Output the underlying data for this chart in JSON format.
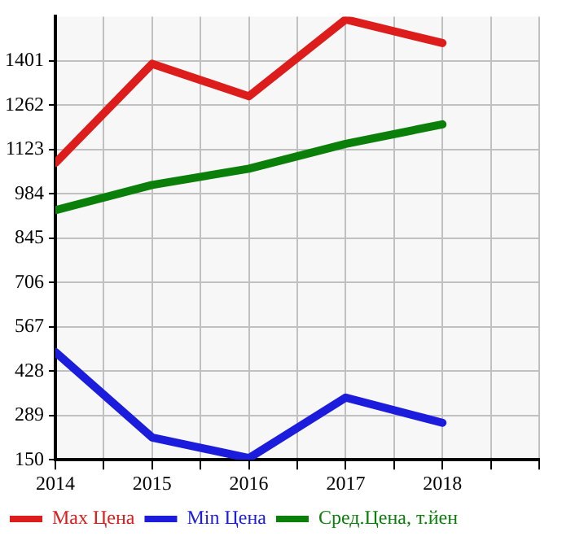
{
  "chart_data": {
    "type": "line",
    "x": [
      2014,
      2015,
      2016,
      2017,
      2018
    ],
    "series": [
      {
        "name": "Max Цена",
        "color": "#dd1c1c",
        "values": [
          1081,
          1392,
          1290,
          1531,
          1457
        ]
      },
      {
        "name": "Min Цена",
        "color": "#1c1cdd",
        "values": [
          488,
          220,
          155,
          345,
          266
        ]
      },
      {
        "name": "Сред.Цена, т.йен",
        "color": "#0a7f0a",
        "values": [
          933,
          1012,
          1063,
          1141,
          1202
        ]
      }
    ],
    "xlim": [
      2014,
      2019
    ],
    "xticks": [
      2014,
      {
        "value": 2014.5,
        "label": null
      },
      2015,
      {
        "value": 2015.5,
        "label": null
      },
      2016,
      {
        "value": 2016.5,
        "label": null
      },
      2017,
      {
        "value": 2017.5,
        "label": null
      },
      2018,
      {
        "value": 2018.5,
        "label": null
      },
      {
        "value": 2019,
        "label": null
      }
    ],
    "ylim": [
      150,
      1540
    ],
    "yticks": [
      150,
      289,
      428,
      567,
      706,
      845,
      984,
      1123,
      1262,
      1401
    ],
    "grid": true,
    "legend": "bottom",
    "marker": "none",
    "line_style": "solid"
  }
}
